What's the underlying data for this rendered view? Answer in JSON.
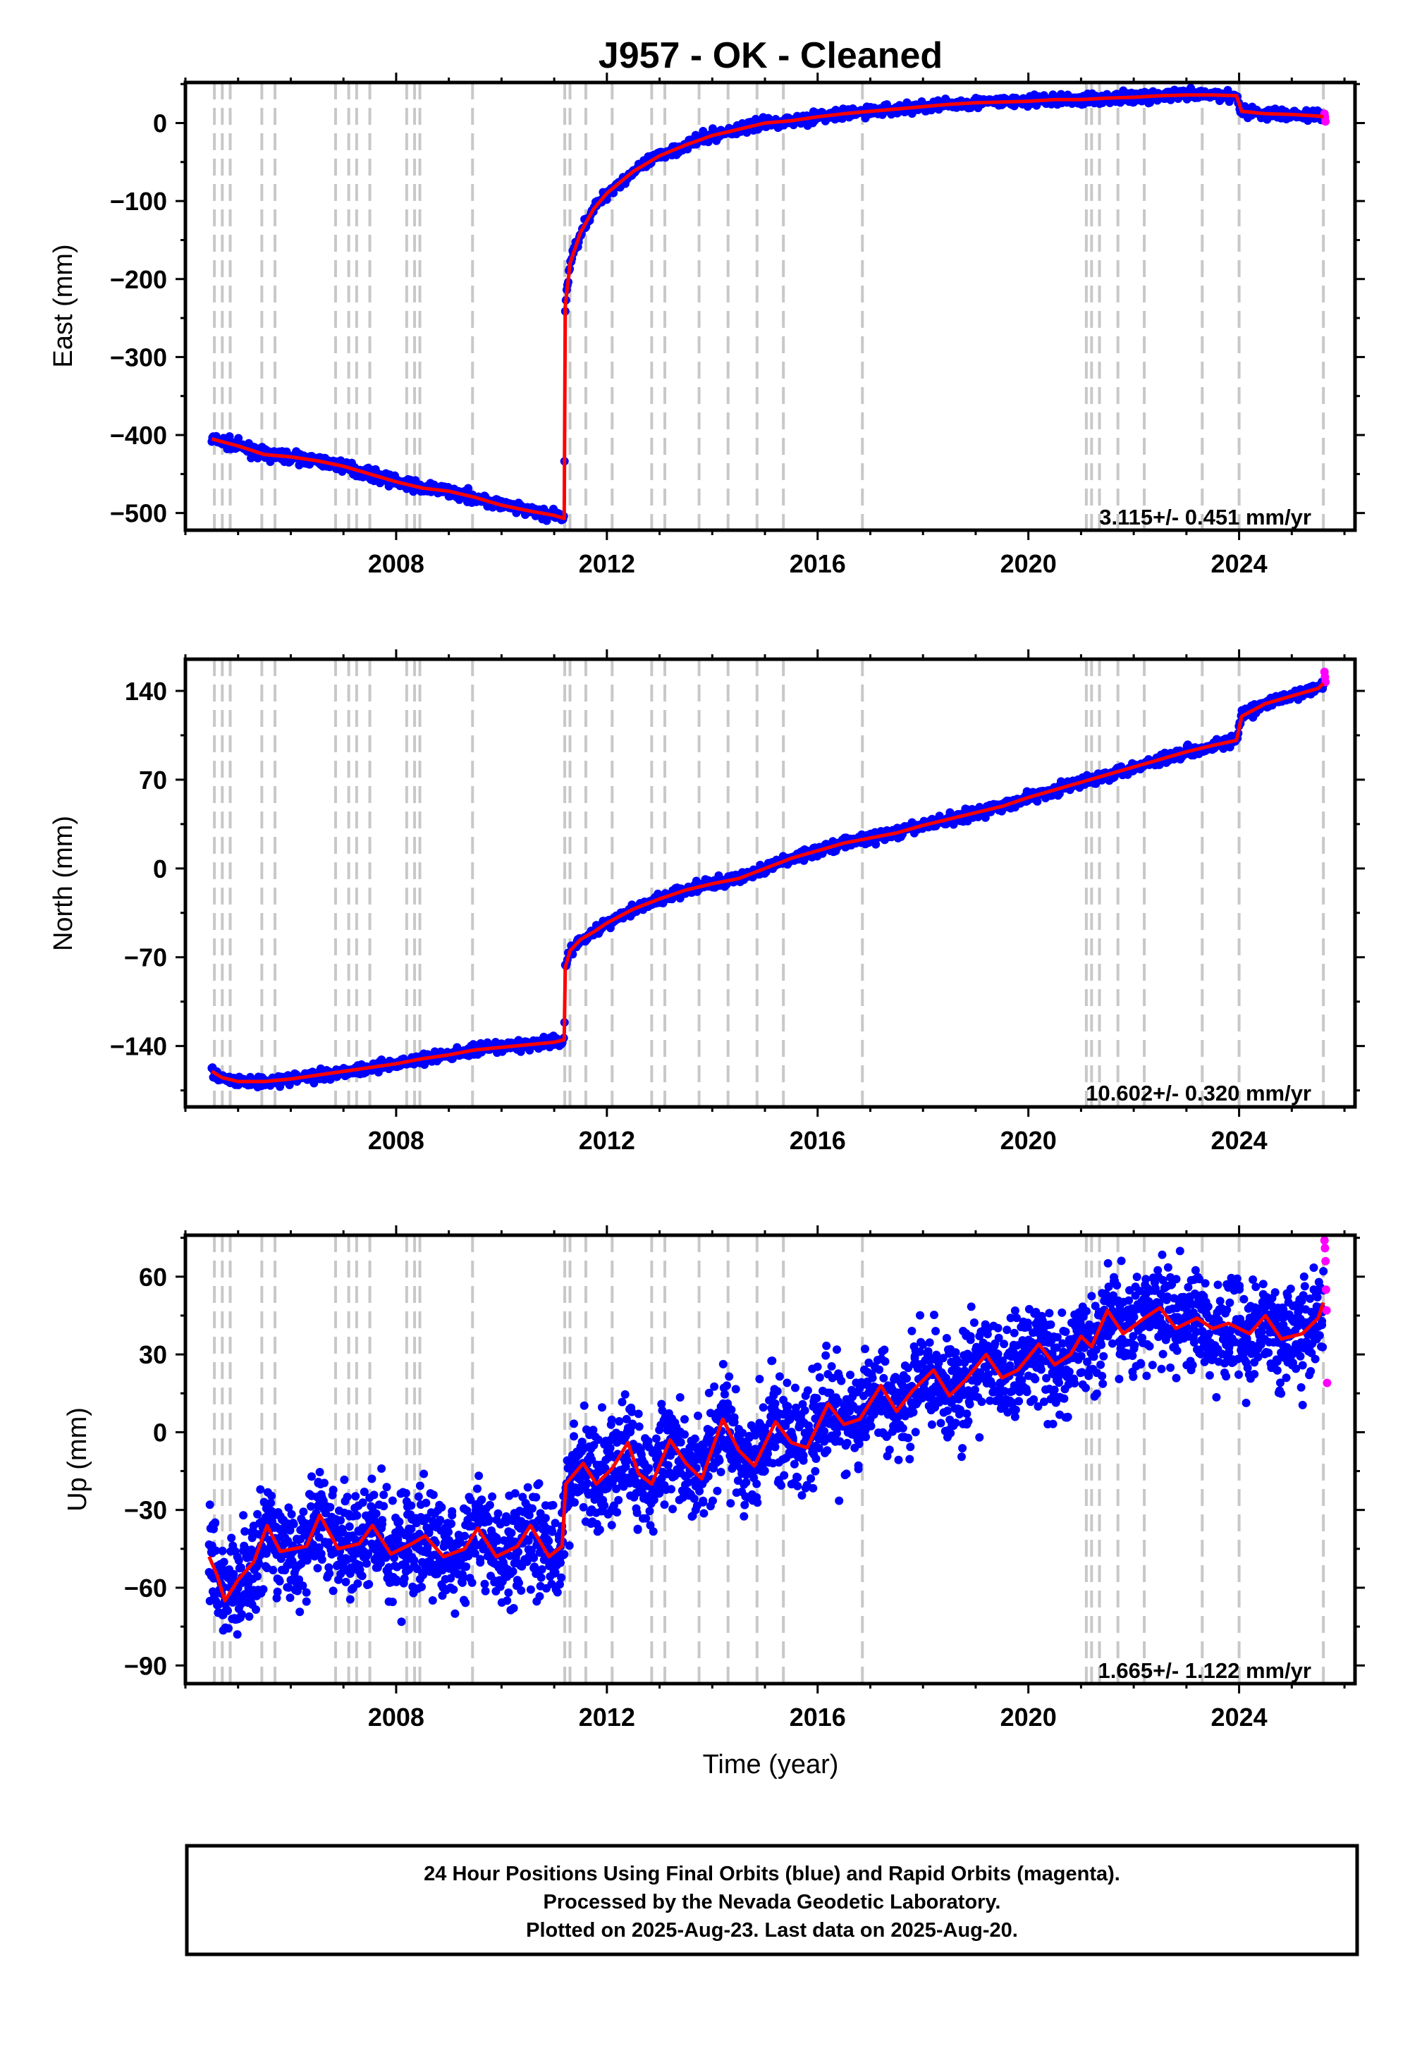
{
  "title": "J957  - OK - Cleaned",
  "footer": {
    "line1": "24 Hour Positions Using Final Orbits (blue) and Rapid Orbits (magenta).",
    "line2": "Processed by the Nevada Geodetic Laboratory.",
    "line3": "Plotted on 2025-Aug-23. Last data on 2025-Aug-20."
  },
  "colors": {
    "final_orbits": "#0000ff",
    "rapid_orbits": "#ff00ff",
    "model": "#ff0000",
    "steps": "#c8c8c8"
  },
  "chart_data": [
    {
      "type": "scatter",
      "title": "",
      "xlabel": "",
      "ylabel": "East (mm)",
      "xlim": [
        2004.0,
        2026.2
      ],
      "ylim": [
        -522,
        52
      ],
      "xticks": [
        2008,
        2012,
        2016,
        2020,
        2024
      ],
      "yticks": [
        0,
        -100,
        -200,
        -300,
        -400,
        -500
      ],
      "ytick_labels": [
        "0",
        "−100",
        "−200",
        "−300",
        "−400",
        "−500"
      ],
      "rate_label": "3.115+/- 0.451 mm/yr",
      "step_epochs": [
        2004.55,
        2004.7,
        2004.85,
        2005.45,
        2005.7,
        2006.85,
        2007.1,
        2007.25,
        2007.5,
        2008.2,
        2008.35,
        2008.45,
        2009.45,
        2011.2,
        2011.3,
        2011.6,
        2012.1,
        2012.85,
        2013.1,
        2013.75,
        2014.3,
        2014.85,
        2015.35,
        2016.85,
        2021.1,
        2021.2,
        2021.35,
        2021.7,
        2022.2,
        2023.3,
        2024.0,
        2025.6
      ],
      "series": [
        {
          "name": "Final Orbits",
          "x": [
            2004.5,
            2005.0,
            2005.5,
            2006.0,
            2006.5,
            2007.0,
            2007.5,
            2008.0,
            2008.5,
            2009.0,
            2009.5,
            2010.0,
            2010.5,
            2011.0,
            2011.19,
            2011.21,
            2011.3,
            2011.5,
            2011.75,
            2012.0,
            2012.5,
            2013.0,
            2013.5,
            2014.0,
            2014.5,
            2015.0,
            2015.5,
            2016.0,
            2016.5,
            2017.0,
            2017.5,
            2018.0,
            2018.5,
            2019.0,
            2019.5,
            2020.0,
            2020.5,
            2021.0,
            2021.5,
            2022.0,
            2022.5,
            2023.0,
            2023.5,
            2023.95,
            2024.05,
            2024.5,
            2025.0,
            2025.5,
            2025.6
          ],
          "y": [
            -405,
            -414,
            -425,
            -428,
            -433,
            -440,
            -450,
            -460,
            -468,
            -472,
            -480,
            -490,
            -497,
            -503,
            -507,
            -235,
            -180,
            -140,
            -110,
            -90,
            -62,
            -42,
            -28,
            -16,
            -8,
            0,
            3,
            8,
            12,
            15,
            18,
            21,
            24,
            26,
            27,
            28,
            30,
            30,
            32,
            33,
            35,
            36,
            36,
            35,
            15,
            12,
            11,
            9,
            8
          ]
        },
        {
          "name": "Rapid Orbits",
          "x": [
            2025.62,
            2025.63,
            2025.64
          ],
          "y": [
            12,
            8,
            2
          ]
        }
      ]
    },
    {
      "type": "scatter",
      "title": "",
      "xlabel": "",
      "ylabel": "North (mm)",
      "xlim": [
        2004.0,
        2026.2
      ],
      "ylim": [
        -188,
        165
      ],
      "xticks": [
        2008,
        2012,
        2016,
        2020,
        2024
      ],
      "yticks": [
        140,
        70,
        0,
        -70,
        -140
      ],
      "ytick_labels": [
        "140",
        "70",
        "0",
        "−70",
        "−140"
      ],
      "rate_label": "10.602+/- 0.320 mm/yr",
      "step_epochs": [
        2004.55,
        2004.7,
        2004.85,
        2005.45,
        2005.7,
        2006.85,
        2007.1,
        2007.25,
        2007.5,
        2008.2,
        2008.35,
        2008.45,
        2009.45,
        2011.2,
        2011.3,
        2011.6,
        2012.1,
        2012.85,
        2013.1,
        2013.75,
        2014.3,
        2014.85,
        2015.35,
        2016.85,
        2021.1,
        2021.2,
        2021.35,
        2021.7,
        2022.2,
        2023.3,
        2024.0,
        2025.6
      ],
      "series": [
        {
          "name": "Final Orbits",
          "x": [
            2004.5,
            2004.7,
            2005.0,
            2005.5,
            2006.0,
            2006.5,
            2007.0,
            2007.5,
            2008.0,
            2008.5,
            2009.0,
            2009.5,
            2010.0,
            2010.5,
            2011.0,
            2011.19,
            2011.21,
            2011.3,
            2011.5,
            2011.75,
            2012.0,
            2012.5,
            2013.0,
            2013.5,
            2014.0,
            2014.5,
            2015.0,
            2015.5,
            2016.0,
            2016.5,
            2017.0,
            2017.5,
            2018.0,
            2018.5,
            2019.0,
            2019.5,
            2020.0,
            2020.5,
            2021.0,
            2021.5,
            2022.0,
            2022.5,
            2023.0,
            2023.5,
            2023.95,
            2024.05,
            2024.5,
            2025.0,
            2025.5,
            2025.6
          ],
          "y": [
            -160,
            -165,
            -168,
            -168,
            -166,
            -163,
            -160,
            -157,
            -154,
            -150,
            -147,
            -143,
            -141,
            -139,
            -137,
            -135,
            -78,
            -65,
            -56,
            -50,
            -43,
            -32,
            -24,
            -17,
            -12,
            -8,
            0,
            8,
            14,
            20,
            24,
            28,
            34,
            39,
            44,
            49,
            56,
            62,
            68,
            74,
            80,
            86,
            92,
            97,
            101,
            120,
            130,
            136,
            142,
            146
          ]
        },
        {
          "name": "Rapid Orbits",
          "x": [
            2025.62,
            2025.63,
            2025.64
          ],
          "y": [
            155,
            151,
            147
          ]
        }
      ]
    },
    {
      "type": "scatter",
      "title": "",
      "xlabel": "Time (year)",
      "ylabel": "Up (mm)",
      "xlim": [
        2004.0,
        2026.2
      ],
      "ylim": [
        -97,
        76
      ],
      "xticks": [
        2008,
        2012,
        2016,
        2020,
        2024
      ],
      "yticks": [
        60,
        30,
        0,
        -30,
        -60,
        -90
      ],
      "ytick_labels": [
        "60",
        "30",
        "0",
        "−30",
        "−60",
        "−90"
      ],
      "rate_label": "1.665+/- 1.122 mm/yr",
      "step_epochs": [
        2004.55,
        2004.7,
        2004.85,
        2005.45,
        2005.7,
        2006.85,
        2007.1,
        2007.25,
        2007.5,
        2008.2,
        2008.35,
        2008.45,
        2009.45,
        2011.2,
        2011.3,
        2011.6,
        2012.1,
        2012.85,
        2013.1,
        2013.75,
        2014.3,
        2014.85,
        2015.35,
        2016.85,
        2021.1,
        2021.2,
        2021.35,
        2021.7,
        2022.2,
        2023.3,
        2024.0,
        2025.6
      ],
      "series": [
        {
          "name": "Final Orbits",
          "x": [
            2004.45,
            2004.6,
            2004.75,
            2005.0,
            2005.3,
            2005.55,
            2005.8,
            2006.3,
            2006.55,
            2006.9,
            2007.3,
            2007.55,
            2007.9,
            2008.3,
            2008.55,
            2008.9,
            2009.3,
            2009.55,
            2009.9,
            2010.3,
            2010.55,
            2010.9,
            2011.15,
            2011.22,
            2011.55,
            2011.8,
            2012.1,
            2012.4,
            2012.6,
            2012.85,
            2013.2,
            2013.5,
            2013.8,
            2014.2,
            2014.5,
            2014.8,
            2015.2,
            2015.5,
            2015.8,
            2016.2,
            2016.5,
            2016.8,
            2017.2,
            2017.5,
            2017.8,
            2018.2,
            2018.5,
            2018.8,
            2019.2,
            2019.5,
            2019.8,
            2020.2,
            2020.5,
            2020.8,
            2021.0,
            2021.2,
            2021.5,
            2021.8,
            2022.2,
            2022.5,
            2022.8,
            2023.2,
            2023.5,
            2023.8,
            2024.2,
            2024.5,
            2024.8,
            2025.2,
            2025.5,
            2025.6
          ],
          "y": [
            -48,
            -55,
            -65,
            -57,
            -50,
            -36,
            -46,
            -44,
            -32,
            -45,
            -43,
            -36,
            -47,
            -43,
            -40,
            -48,
            -45,
            -37,
            -48,
            -44,
            -36,
            -48,
            -44,
            -20,
            -12,
            -20,
            -14,
            -4,
            -16,
            -20,
            -3,
            -12,
            -18,
            5,
            -7,
            -13,
            4,
            -4,
            -6,
            11,
            3,
            5,
            18,
            8,
            16,
            24,
            14,
            20,
            30,
            21,
            24,
            34,
            26,
            30,
            37,
            33,
            47,
            38,
            44,
            48,
            40,
            44,
            40,
            42,
            38,
            45,
            36,
            38,
            44,
            50
          ]
        },
        {
          "name": "Rapid Orbits",
          "x": [
            2025.62,
            2025.63,
            2025.64,
            2025.65,
            2025.66,
            2025.67
          ],
          "y": [
            74,
            71,
            66,
            55,
            47,
            19
          ]
        }
      ]
    }
  ]
}
